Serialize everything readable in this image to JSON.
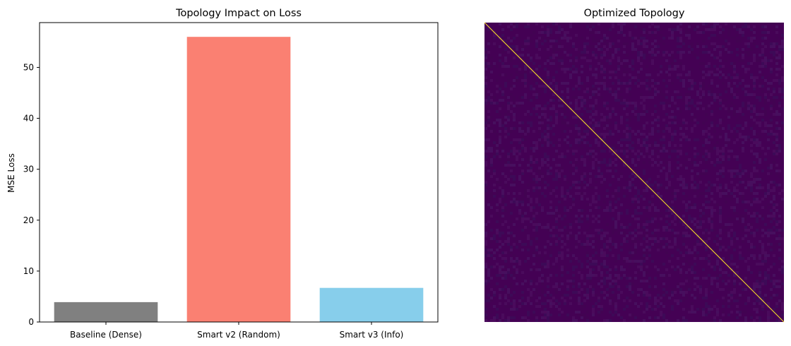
{
  "chart_data": [
    {
      "type": "bar",
      "title": "Topology Impact on Loss",
      "xlabel": "",
      "ylabel": "MSE Loss",
      "categories": [
        "Baseline (Dense)",
        "Smart v2 (Random)",
        "Smart v3 (Info)"
      ],
      "values": [
        3.9,
        56.0,
        6.7
      ],
      "colors": [
        "#808080",
        "#FA8072",
        "#87CEEB"
      ],
      "ylim": [
        0,
        58.8
      ],
      "yticks": [
        0,
        10,
        20,
        30,
        40,
        50
      ],
      "grid": false
    },
    {
      "type": "heatmap",
      "title": "Optimized Topology",
      "description_colors": {
        "background": "#440154",
        "diagonal": "#FDE725"
      },
      "diagonal": true,
      "axes_visible": false
    }
  ]
}
